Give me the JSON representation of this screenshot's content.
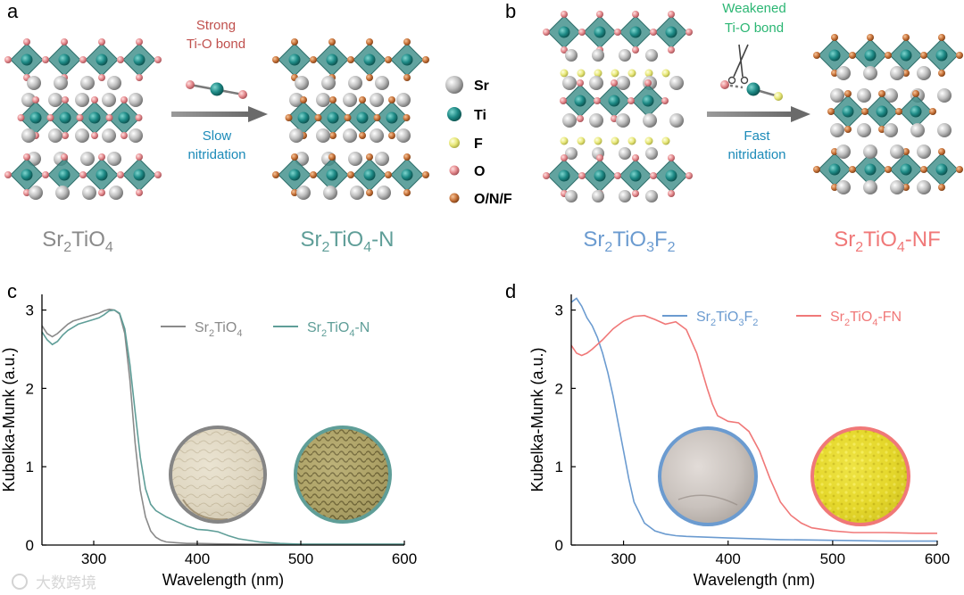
{
  "panel_a": {
    "letter": "a",
    "bond_label_line1": "Strong",
    "bond_label_line2": "Ti-O bond",
    "process_line1": "Slow",
    "process_line2": "nitridation",
    "start_name": {
      "base": "Sr",
      "sub1": "2",
      "mid": "TiO",
      "sub2": "4",
      "tail": ""
    },
    "end_name": {
      "base": "Sr",
      "sub1": "2",
      "mid": "TiO",
      "sub2": "4",
      "tail": "-N"
    }
  },
  "legend_atoms": [
    {
      "label": "Sr",
      "color": "#b8b8b8"
    },
    {
      "label": "Ti",
      "color": "#1e8a86"
    },
    {
      "label": "F",
      "color": "#e8e87a"
    },
    {
      "label": "O",
      "color": "#e58a8e"
    },
    {
      "label": "O/N/F",
      "color": "#c8733a"
    }
  ],
  "panel_b": {
    "letter": "b",
    "bond_label_line1": "Weakened",
    "bond_label_line2": "Ti-O bond",
    "process_line1": "Fast",
    "process_line2": "nitridation",
    "start_name": {
      "base": "Sr",
      "sub1": "2",
      "mid": "TiO",
      "sub2": "3",
      "mid2": "F",
      "sub3": "2",
      "tail": ""
    },
    "end_name": {
      "base": "Sr",
      "sub1": "2",
      "mid": "TiO",
      "sub2": "4",
      "tail": "-NF"
    }
  },
  "colors": {
    "gray": "#8a8a8a",
    "teal": "#5f9e98",
    "blue": "#6b9bd0",
    "red": "#f07878",
    "brown_text": "#c0504d",
    "green_text": "#2bb673",
    "blue_text": "#1b8ab8"
  },
  "watermark": "大数跨境",
  "chart_data": [
    {
      "panel": "c",
      "type": "line",
      "xlabel": "Wavelength (nm)",
      "ylabel": "Kubelka-Munk (a.u.)",
      "xlim": [
        250,
        600
      ],
      "ylim": [
        0,
        3.2
      ],
      "xticks": [
        300,
        400,
        500,
        600
      ],
      "yticks": [
        0,
        1,
        2,
        3
      ],
      "series": [
        {
          "name": "Sr2TiO4",
          "legend": {
            "base": "Sr",
            "sub1": "2",
            "mid": "TiO",
            "sub2": "4",
            "tail": ""
          },
          "color": "#8a8a8a",
          "x": [
            250,
            255,
            260,
            265,
            270,
            275,
            280,
            285,
            290,
            295,
            300,
            305,
            310,
            315,
            320,
            325,
            330,
            335,
            340,
            345,
            350,
            355,
            360,
            365,
            370,
            380,
            390,
            400,
            420,
            450,
            500,
            550,
            600
          ],
          "y": [
            2.8,
            2.7,
            2.66,
            2.7,
            2.76,
            2.82,
            2.86,
            2.88,
            2.9,
            2.92,
            2.94,
            2.96,
            2.99,
            3.01,
            3.0,
            2.95,
            2.7,
            2.1,
            1.3,
            0.7,
            0.36,
            0.18,
            0.1,
            0.06,
            0.04,
            0.03,
            0.02,
            0.02,
            0.015,
            0.01,
            0.01,
            0.01,
            0.01
          ]
        },
        {
          "name": "Sr2TiO4-N",
          "legend": {
            "base": "Sr",
            "sub1": "2",
            "mid": "TiO",
            "sub2": "4",
            "tail": "-N"
          },
          "color": "#5f9e98",
          "x": [
            250,
            255,
            260,
            265,
            270,
            275,
            280,
            285,
            290,
            295,
            300,
            305,
            310,
            315,
            320,
            325,
            330,
            335,
            340,
            345,
            350,
            355,
            360,
            370,
            380,
            390,
            400,
            410,
            420,
            430,
            440,
            460,
            480,
            500,
            550,
            600
          ],
          "y": [
            2.72,
            2.62,
            2.56,
            2.6,
            2.68,
            2.74,
            2.78,
            2.82,
            2.84,
            2.86,
            2.88,
            2.9,
            2.94,
            2.99,
            3.0,
            2.96,
            2.76,
            2.3,
            1.7,
            1.12,
            0.72,
            0.52,
            0.44,
            0.36,
            0.3,
            0.24,
            0.2,
            0.19,
            0.17,
            0.12,
            0.08,
            0.04,
            0.02,
            0.01,
            0.01,
            0.01
          ]
        }
      ]
    },
    {
      "panel": "d",
      "type": "line",
      "xlabel": "Wavelength (nm)",
      "ylabel": "Kubelka-Munk (a.u.)",
      "xlim": [
        250,
        600
      ],
      "ylim": [
        0,
        3.2
      ],
      "xticks": [
        300,
        400,
        500,
        600
      ],
      "yticks": [
        0,
        1,
        2,
        3
      ],
      "series": [
        {
          "name": "Sr2TiO3F2",
          "legend": {
            "base": "Sr",
            "sub1": "2",
            "mid": "TiO",
            "sub2": "3",
            "mid2": "F",
            "sub3": "2",
            "tail": ""
          },
          "color": "#6b9bd0",
          "x": [
            250,
            255,
            260,
            265,
            270,
            275,
            280,
            285,
            290,
            295,
            300,
            305,
            310,
            320,
            330,
            340,
            350,
            360,
            380,
            400,
            450,
            500,
            550,
            600
          ],
          "y": [
            3.1,
            3.15,
            3.05,
            2.9,
            2.8,
            2.65,
            2.45,
            2.2,
            1.9,
            1.55,
            1.2,
            0.85,
            0.55,
            0.28,
            0.18,
            0.14,
            0.12,
            0.11,
            0.1,
            0.09,
            0.07,
            0.06,
            0.05,
            0.05
          ]
        },
        {
          "name": "Sr2TiO4-FN",
          "legend": {
            "base": "Sr",
            "sub1": "2",
            "mid": "TiO",
            "sub2": "4",
            "tail": "-FN"
          },
          "color": "#f07878",
          "x": [
            250,
            255,
            260,
            265,
            270,
            280,
            290,
            300,
            310,
            320,
            330,
            340,
            350,
            360,
            370,
            380,
            385,
            390,
            400,
            410,
            420,
            430,
            440,
            450,
            460,
            470,
            480,
            500,
            520,
            550,
            580,
            600
          ],
          "y": [
            2.55,
            2.45,
            2.42,
            2.45,
            2.5,
            2.62,
            2.76,
            2.86,
            2.92,
            2.93,
            2.88,
            2.82,
            2.85,
            2.75,
            2.45,
            2.0,
            1.8,
            1.65,
            1.58,
            1.56,
            1.45,
            1.2,
            0.85,
            0.55,
            0.38,
            0.28,
            0.22,
            0.18,
            0.16,
            0.16,
            0.15,
            0.15
          ]
        }
      ]
    }
  ]
}
